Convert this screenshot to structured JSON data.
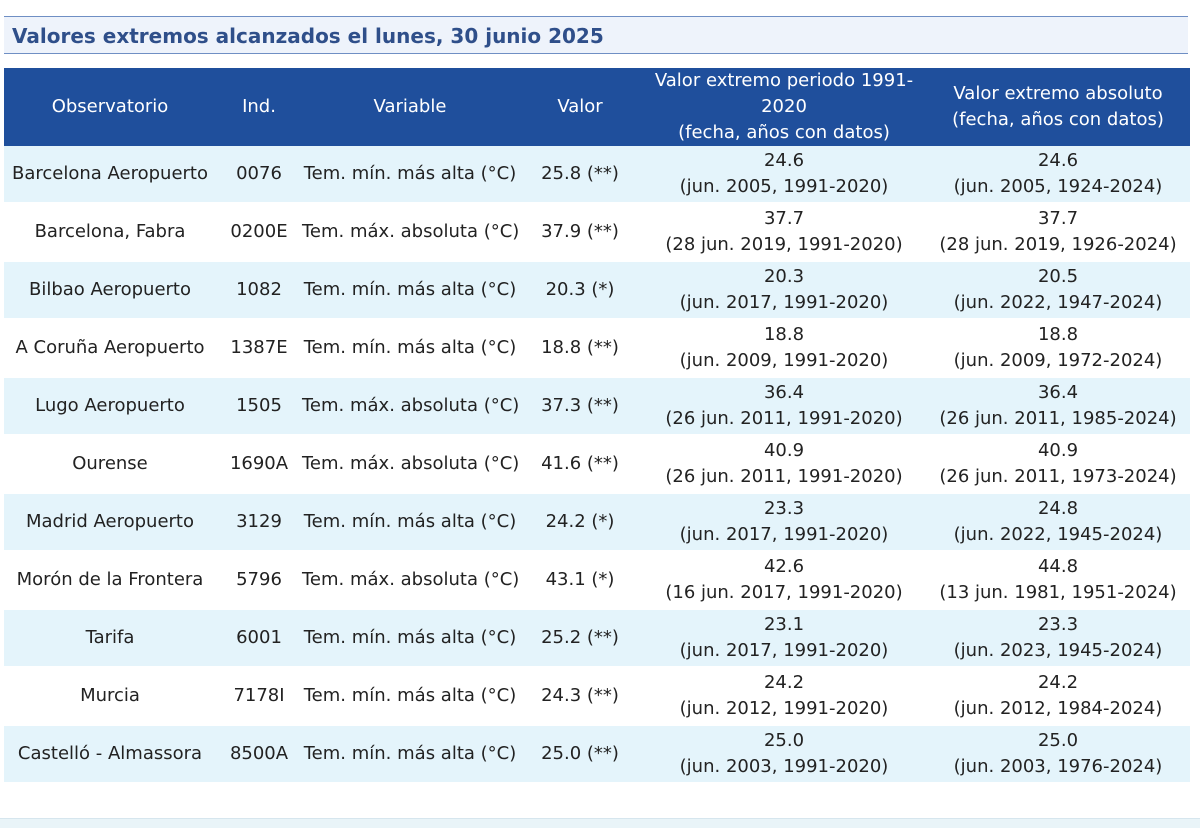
{
  "title": "Valores extremos alcanzados el lunes, 30 junio 2025",
  "headers": {
    "observatorio": "Observatorio",
    "ind": "Ind.",
    "variable": "Variable",
    "valor": "Valor",
    "periodo_line1": "Valor extremo periodo 1991-2020",
    "periodo_line2": "(fecha, años con datos)",
    "absoluto_line1": "Valor extremo absoluto",
    "absoluto_line2": "(fecha, años con datos)"
  },
  "rows": [
    {
      "observatorio": "Barcelona Aeropuerto",
      "ind": "0076",
      "variable": "Tem. mín. más alta (°C)",
      "valor": "25.8 (**)",
      "periodo_valor": "24.6",
      "periodo_fecha": "(jun. 2005, 1991-2020)",
      "absoluto_valor": "24.6",
      "absoluto_fecha": "(jun. 2005, 1924-2024)"
    },
    {
      "observatorio": "Barcelona, Fabra",
      "ind": "0200E",
      "variable": "Tem. máx. absoluta (°C)",
      "valor": "37.9 (**)",
      "periodo_valor": "37.7",
      "periodo_fecha": "(28 jun. 2019, 1991-2020)",
      "absoluto_valor": "37.7",
      "absoluto_fecha": "(28 jun. 2019, 1926-2024)"
    },
    {
      "observatorio": "Bilbao Aeropuerto",
      "ind": "1082",
      "variable": "Tem. mín. más alta (°C)",
      "valor": "20.3 (*)",
      "periodo_valor": "20.3",
      "periodo_fecha": "(jun. 2017, 1991-2020)",
      "absoluto_valor": "20.5",
      "absoluto_fecha": "(jun. 2022, 1947-2024)"
    },
    {
      "observatorio": "A Coruña Aeropuerto",
      "ind": "1387E",
      "variable": "Tem. mín. más alta (°C)",
      "valor": "18.8 (**)",
      "periodo_valor": "18.8",
      "periodo_fecha": "(jun. 2009, 1991-2020)",
      "absoluto_valor": "18.8",
      "absoluto_fecha": "(jun. 2009, 1972-2024)"
    },
    {
      "observatorio": "Lugo Aeropuerto",
      "ind": "1505",
      "variable": "Tem. máx. absoluta (°C)",
      "valor": "37.3 (**)",
      "periodo_valor": "36.4",
      "periodo_fecha": "(26 jun. 2011, 1991-2020)",
      "absoluto_valor": "36.4",
      "absoluto_fecha": "(26 jun. 2011, 1985-2024)"
    },
    {
      "observatorio": "Ourense",
      "ind": "1690A",
      "variable": "Tem. máx. absoluta (°C)",
      "valor": "41.6 (**)",
      "periodo_valor": "40.9",
      "periodo_fecha": "(26 jun. 2011, 1991-2020)",
      "absoluto_valor": "40.9",
      "absoluto_fecha": "(26 jun. 2011, 1973-2024)"
    },
    {
      "observatorio": "Madrid Aeropuerto",
      "ind": "3129",
      "variable": "Tem. mín. más alta (°C)",
      "valor": "24.2 (*)",
      "periodo_valor": "23.3",
      "periodo_fecha": "(jun. 2017, 1991-2020)",
      "absoluto_valor": "24.8",
      "absoluto_fecha": "(jun. 2022, 1945-2024)"
    },
    {
      "observatorio": "Morón de la Frontera",
      "ind": "5796",
      "variable": "Tem. máx. absoluta (°C)",
      "valor": "43.1 (*)",
      "periodo_valor": "42.6",
      "periodo_fecha": "(16 jun. 2017, 1991-2020)",
      "absoluto_valor": "44.8",
      "absoluto_fecha": "(13 jun. 1981, 1951-2024)"
    },
    {
      "observatorio": "Tarifa",
      "ind": "6001",
      "variable": "Tem. mín. más alta (°C)",
      "valor": "25.2 (**)",
      "periodo_valor": "23.1",
      "periodo_fecha": "(jun. 2017, 1991-2020)",
      "absoluto_valor": "23.3",
      "absoluto_fecha": "(jun. 2023, 1945-2024)"
    },
    {
      "observatorio": "Murcia",
      "ind": "7178I",
      "variable": "Tem. mín. más alta (°C)",
      "valor": "24.3 (**)",
      "periodo_valor": "24.2",
      "periodo_fecha": "(jun. 2012, 1991-2020)",
      "absoluto_valor": "24.2",
      "absoluto_fecha": "(jun. 2012, 1984-2024)"
    },
    {
      "observatorio": "Castelló - Almassora",
      "ind": "8500A",
      "variable": "Tem. mín. más alta (°C)",
      "valor": "25.0 (**)",
      "periodo_valor": "25.0",
      "periodo_fecha": "(jun. 2003, 1991-2020)",
      "absoluto_valor": "25.0",
      "absoluto_fecha": "(jun. 2003, 1976-2024)"
    }
  ]
}
